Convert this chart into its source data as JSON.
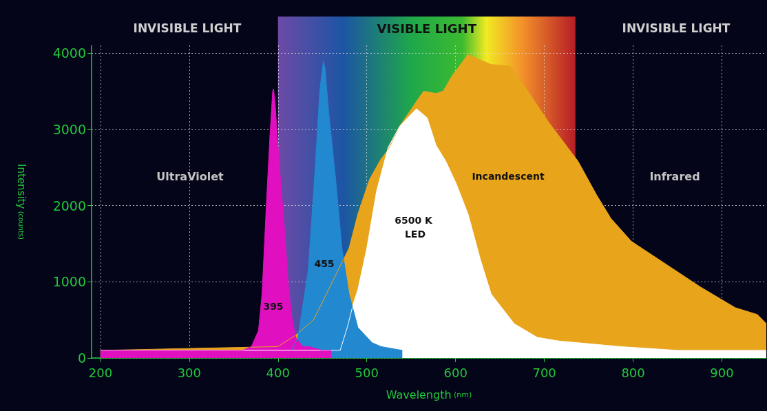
{
  "chart_data": {
    "type": "area",
    "xlabel": "Wavelength (nm)",
    "ylabel": "Intensity (counts)",
    "xlim": [
      190,
      950
    ],
    "xticks": [
      200,
      300,
      400,
      500,
      600,
      700,
      800,
      900
    ],
    "ylim": [
      0,
      4100
    ],
    "yticks": [
      0,
      1000,
      2000,
      3000,
      4000
    ],
    "grid": true,
    "marker": "none",
    "legend": false,
    "bands": [
      {
        "axis": "x",
        "from": 400,
        "to": 735,
        "label": "VISIBLE LIGHT"
      }
    ],
    "annotations": [
      "INVISIBLE LIGHT",
      "INVISIBLE LIGHT",
      "UltraViolet",
      "Infrared"
    ],
    "series": [
      {
        "name": "Incandescent",
        "color": "#e8a51c",
        "x": [
          200,
          400,
          420,
          440,
          474,
          480,
          490,
          503,
          516,
          524,
          537,
          558,
          564,
          578,
          586,
          596,
          614,
          640,
          661,
          679,
          705,
          738,
          759,
          775,
          798,
          837,
          876,
          915,
          940,
          950
        ],
        "values": [
          100,
          150,
          300,
          500,
          1300,
          1440,
          1890,
          2340,
          2610,
          2730,
          3040,
          3400,
          3500,
          3470,
          3500,
          3700,
          3980,
          3850,
          3830,
          3540,
          3090,
          2580,
          2135,
          1830,
          1530,
          1230,
          930,
          660,
          570,
          450
        ]
      },
      {
        "name": "6500 K LED",
        "color": "#ffffff",
        "x": [
          200,
          470,
          478,
          485,
          490,
          500,
          511,
          524,
          537,
          556,
          568,
          578,
          589,
          601,
          614,
          628,
          640,
          666,
          692,
          718,
          738,
          785,
          850,
          950
        ],
        "values": [
          100,
          100,
          400,
          720,
          900,
          1440,
          2190,
          2760,
          3040,
          3270,
          3150,
          2790,
          2580,
          2280,
          1890,
          1290,
          840,
          450,
          270,
          220,
          200,
          150,
          100,
          100
        ]
      },
      {
        "name": "455",
        "color": "#2288d0",
        "x": [
          415,
          422,
          426,
          434,
          441,
          447,
          451,
          453,
          457,
          465,
          472,
          480,
          490,
          506,
          516,
          540
        ],
        "values": [
          100,
          250,
          540,
          1150,
          2340,
          3500,
          3890,
          3800,
          3240,
          2340,
          1440,
          840,
          400,
          200,
          150,
          100
        ]
      },
      {
        "name": "395",
        "color": "#e010c0",
        "x": [
          200,
          360,
          370,
          378,
          382,
          387,
          391,
          394,
          395,
          397,
          399,
          403,
          407,
          412,
          416,
          420,
          428,
          435,
          450,
          460
        ],
        "values": [
          100,
          100,
          150,
          360,
          840,
          2040,
          2940,
          3500,
          3530,
          3300,
          2940,
          2300,
          1740,
          900,
          500,
          270,
          150,
          150,
          100,
          100
        ]
      }
    ]
  }
}
